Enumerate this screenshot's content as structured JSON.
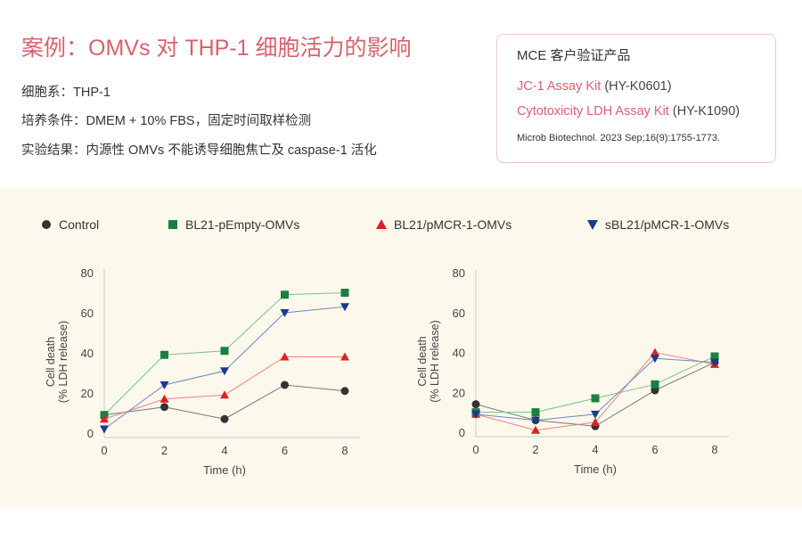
{
  "title": "案例：OMVs 对 THP-1 细胞活力的影响",
  "info": {
    "cell_line": "细胞系：THP-1",
    "culture": "培养条件：DMEM + 10% FBS，固定时间取样检测",
    "result": "实验结果：内源性 OMVs 不能诱导细胞焦亡及 caspase-1 活化"
  },
  "products": {
    "heading": "MCE 客户验证产品",
    "items": [
      {
        "name": "JC-1 Assay Kit",
        "code": "(HY-K0601)"
      },
      {
        "name": "Cytotoxicity LDH Assay Kit",
        "code": "(HY-K1090)"
      }
    ],
    "reference": "Microb Biotechnol. 2023 Sep;16(9):1755-1773."
  },
  "colors": {
    "accent": "#d9606e",
    "Control": "#333333",
    "BL21-pEmpty-OMVs": "#1a8040",
    "BL21/pMCR-1-OMVs": "#e02020",
    "sBL21/pMCR-1-OMVs": "#1a3a8a"
  },
  "legend": [
    "Control",
    "BL21-pEmpty-OMVs",
    "BL21/pMCR-1-OMVs",
    "sBL21/pMCR-1-OMVs"
  ],
  "chart_data": [
    {
      "type": "line",
      "xlabel": "Time (h)",
      "ylabel": "Cell death",
      "ylabel2": "(% LDH release)",
      "x": [
        0,
        2,
        4,
        6,
        8
      ],
      "xticks": [
        "0",
        "2",
        "4",
        "6",
        "8"
      ],
      "yticks": [
        "0",
        "20",
        "40",
        "60",
        "80"
      ],
      "ylim": [
        0,
        80
      ],
      "xlim": [
        0,
        8
      ],
      "series": [
        {
          "name": "Control",
          "marker": "circle",
          "values": [
            9,
            13,
            7,
            24,
            21
          ]
        },
        {
          "name": "BL21-pEmpty-OMVs",
          "marker": "square",
          "values": [
            9,
            39,
            41,
            69,
            70
          ]
        },
        {
          "name": "BL21/pMCR-1-OMVs",
          "marker": "triangle-up",
          "values": [
            7,
            17,
            19,
            38,
            38
          ]
        },
        {
          "name": "sBL21/pMCR-1-OMVs",
          "marker": "triangle-down",
          "values": [
            2,
            24,
            31,
            60,
            63
          ]
        }
      ]
    },
    {
      "type": "line",
      "xlabel": "Time (h)",
      "ylabel": "Cell death",
      "ylabel2": "(% LDH release)",
      "x": [
        0,
        2,
        4,
        6,
        8
      ],
      "xticks": [
        "0",
        "2",
        "4",
        "6",
        "8"
      ],
      "yticks": [
        "0",
        "20",
        "40",
        "60",
        "80"
      ],
      "ylim": [
        0,
        80
      ],
      "xlim": [
        0,
        8
      ],
      "series": [
        {
          "name": "Control",
          "marker": "circle",
          "values": [
            14,
            6,
            3,
            21,
            35
          ]
        },
        {
          "name": "BL21-pEmpty-OMVs",
          "marker": "square",
          "values": [
            10,
            10,
            17,
            24,
            38
          ]
        },
        {
          "name": "BL21/pMCR-1-OMVs",
          "marker": "triangle-up",
          "values": [
            9,
            1,
            5,
            40,
            34
          ]
        },
        {
          "name": "sBL21/pMCR-1-OMVs",
          "marker": "triangle-down",
          "values": [
            9,
            6,
            9,
            37,
            35
          ]
        }
      ]
    }
  ]
}
